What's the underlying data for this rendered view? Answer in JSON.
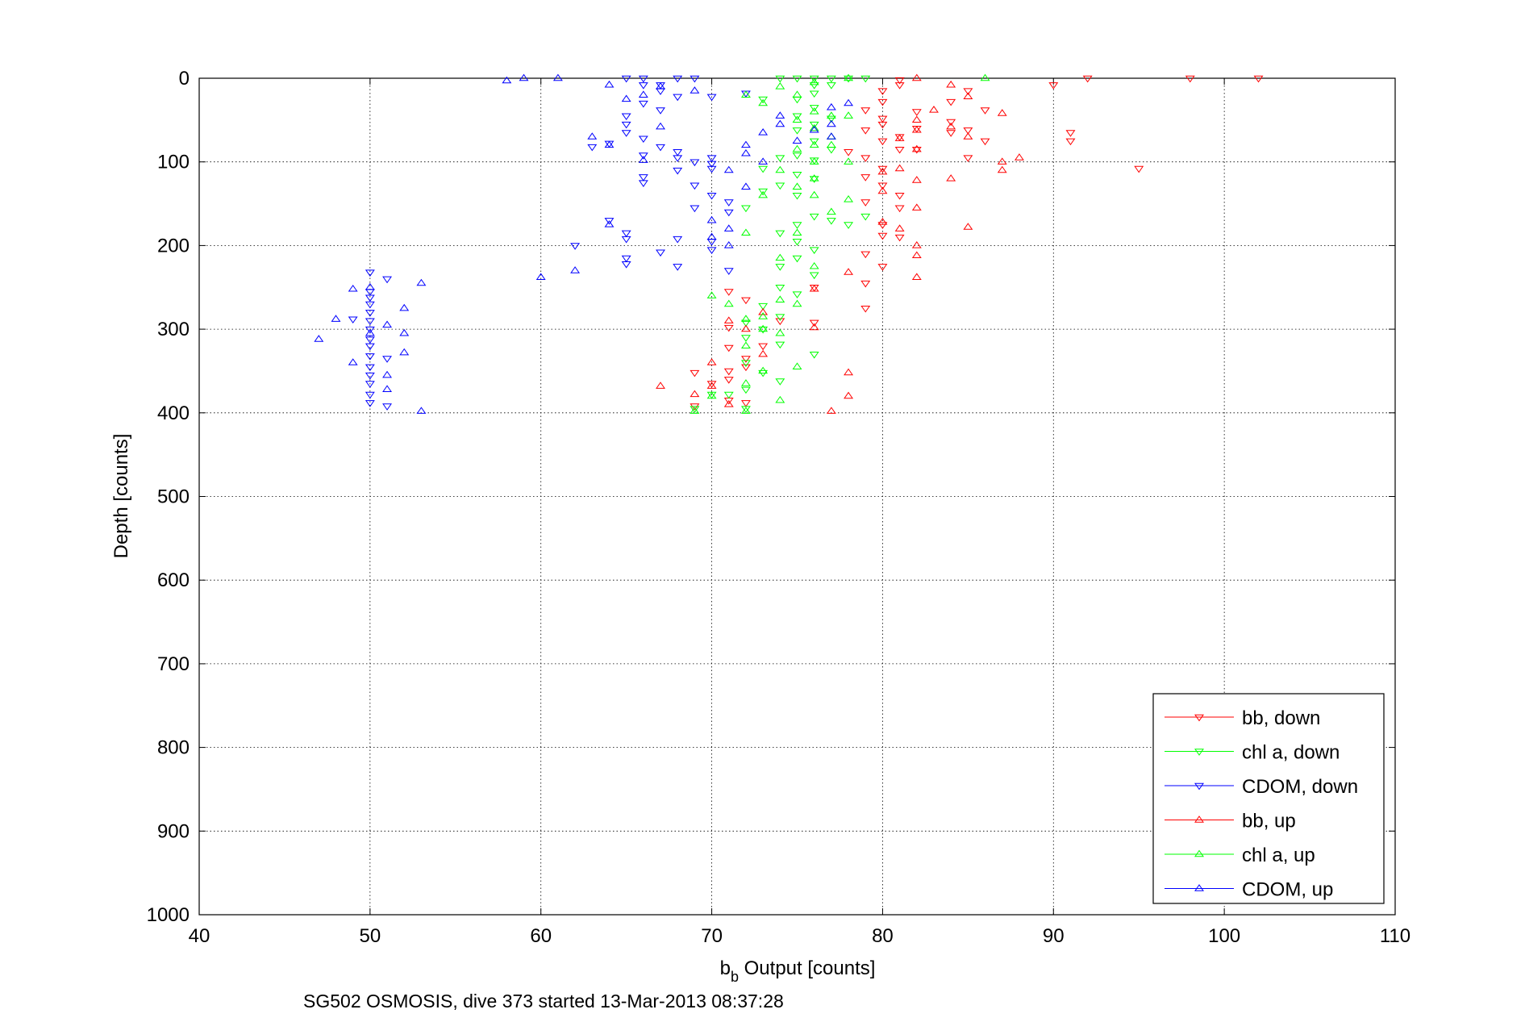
{
  "chart_data": {
    "type": "scatter",
    "title": "",
    "xlabel_main": "b",
    "xlabel_sub": "b",
    "xlabel_rest": " Output [counts]",
    "ylabel": "Depth [counts]",
    "caption": "SG502 OSMOSIS, dive 373 started 13-Mar-2013 08:37:28",
    "xlim": [
      40,
      110
    ],
    "ylim": [
      0,
      1000
    ],
    "y_reversed": true,
    "grid": true,
    "legend_position": "bottom-right",
    "x_ticks": [
      "40",
      "50",
      "60",
      "70",
      "80",
      "90",
      "100",
      "110"
    ],
    "y_ticks": [
      "0",
      "100",
      "200",
      "300",
      "400",
      "500",
      "600",
      "700",
      "800",
      "900",
      "1000"
    ],
    "series": [
      {
        "name": "bb, down",
        "color": "#ff0000",
        "marker": "triangle-down",
        "points": [
          [
            92,
            0
          ],
          [
            98,
            0
          ],
          [
            102,
            0
          ],
          [
            90,
            8
          ],
          [
            81,
            2
          ],
          [
            81,
            8
          ],
          [
            80,
            15
          ],
          [
            80,
            28
          ],
          [
            79,
            38
          ],
          [
            80,
            48
          ],
          [
            80,
            55
          ],
          [
            79,
            62
          ],
          [
            81,
            70
          ],
          [
            80,
            75
          ],
          [
            81,
            85
          ],
          [
            78,
            88
          ],
          [
            79,
            95
          ],
          [
            80,
            108
          ],
          [
            79,
            118
          ],
          [
            80,
            128
          ],
          [
            91,
            65
          ],
          [
            91,
            75
          ],
          [
            95,
            108
          ],
          [
            85,
            62
          ],
          [
            84,
            52
          ],
          [
            81,
            140
          ],
          [
            79,
            148
          ],
          [
            80,
            175
          ],
          [
            80,
            188
          ],
          [
            81,
            190
          ],
          [
            79,
            210
          ],
          [
            80,
            225
          ],
          [
            81,
            155
          ],
          [
            79,
            245
          ],
          [
            79,
            275
          ],
          [
            76,
            250
          ],
          [
            76,
            292
          ],
          [
            71,
            255
          ],
          [
            72,
            265
          ],
          [
            71,
            298
          ],
          [
            71,
            322
          ],
          [
            72,
            335
          ],
          [
            71,
            350
          ],
          [
            72,
            345
          ],
          [
            69,
            352
          ],
          [
            70,
            365
          ],
          [
            71,
            360
          ],
          [
            69,
            392
          ],
          [
            71,
            385
          ],
          [
            72,
            388
          ],
          [
            73,
            320
          ],
          [
            74,
            290
          ],
          [
            85,
            15
          ],
          [
            84,
            28
          ],
          [
            86,
            38
          ],
          [
            84,
            65
          ],
          [
            86,
            75
          ],
          [
            82,
            85
          ],
          [
            82,
            40
          ],
          [
            82,
            60
          ],
          [
            85,
            95
          ]
        ]
      },
      {
        "name": "chl a, down",
        "color": "#00ff00",
        "marker": "triangle-down",
        "points": [
          [
            74,
            0
          ],
          [
            75,
            0
          ],
          [
            76,
            0
          ],
          [
            77,
            0
          ],
          [
            78,
            0
          ],
          [
            79,
            0
          ],
          [
            76,
            8
          ],
          [
            77,
            8
          ],
          [
            76,
            18
          ],
          [
            75,
            25
          ],
          [
            73,
            25
          ],
          [
            76,
            35
          ],
          [
            75,
            45
          ],
          [
            77,
            48
          ],
          [
            76,
            55
          ],
          [
            75,
            62
          ],
          [
            76,
            75
          ],
          [
            77,
            85
          ],
          [
            75,
            92
          ],
          [
            74,
            95
          ],
          [
            76,
            98
          ],
          [
            73,
            108
          ],
          [
            75,
            115
          ],
          [
            76,
            120
          ],
          [
            74,
            128
          ],
          [
            73,
            135
          ],
          [
            75,
            140
          ],
          [
            72,
            155
          ],
          [
            76,
            165
          ],
          [
            75,
            175
          ],
          [
            77,
            170
          ],
          [
            74,
            185
          ],
          [
            75,
            195
          ],
          [
            76,
            205
          ],
          [
            75,
            215
          ],
          [
            74,
            225
          ],
          [
            76,
            235
          ],
          [
            74,
            250
          ],
          [
            75,
            258
          ],
          [
            73,
            272
          ],
          [
            74,
            285
          ],
          [
            72,
            292
          ],
          [
            73,
            300
          ],
          [
            72,
            310
          ],
          [
            74,
            318
          ],
          [
            76,
            330
          ],
          [
            72,
            340
          ],
          [
            73,
            352
          ],
          [
            74,
            362
          ],
          [
            72,
            372
          ],
          [
            71,
            378
          ],
          [
            70,
            378
          ],
          [
            69,
            395
          ],
          [
            72,
            395
          ],
          [
            78,
            175
          ],
          [
            79,
            165
          ]
        ]
      },
      {
        "name": "CDOM, down",
        "color": "#0000ff",
        "marker": "triangle-down",
        "points": [
          [
            65,
            0
          ],
          [
            66,
            0
          ],
          [
            68,
            0
          ],
          [
            69,
            0
          ],
          [
            66,
            8
          ],
          [
            67,
            8
          ],
          [
            67,
            15
          ],
          [
            68,
            22
          ],
          [
            66,
            30
          ],
          [
            67,
            38
          ],
          [
            70,
            22
          ],
          [
            72,
            18
          ],
          [
            65,
            55
          ],
          [
            65,
            65
          ],
          [
            66,
            72
          ],
          [
            64,
            78
          ],
          [
            67,
            82
          ],
          [
            68,
            88
          ],
          [
            68,
            95
          ],
          [
            70,
            95
          ],
          [
            70,
            102
          ],
          [
            70,
            108
          ],
          [
            68,
            110
          ],
          [
            66,
            118
          ],
          [
            66,
            125
          ],
          [
            69,
            128
          ],
          [
            70,
            140
          ],
          [
            71,
            148
          ],
          [
            69,
            155
          ],
          [
            71,
            160
          ],
          [
            64,
            170
          ],
          [
            65,
            185
          ],
          [
            65,
            192
          ],
          [
            68,
            192
          ],
          [
            70,
            195
          ],
          [
            70,
            205
          ],
          [
            67,
            208
          ],
          [
            62,
            200
          ],
          [
            65,
            215
          ],
          [
            65,
            222
          ],
          [
            68,
            225
          ],
          [
            71,
            230
          ],
          [
            50,
            232
          ],
          [
            50,
            255
          ],
          [
            50,
            262
          ],
          [
            50,
            270
          ],
          [
            50,
            280
          ],
          [
            50,
            290
          ],
          [
            50,
            300
          ],
          [
            50,
            312
          ],
          [
            50,
            320
          ],
          [
            50,
            332
          ],
          [
            50,
            345
          ],
          [
            50,
            355
          ],
          [
            50,
            365
          ],
          [
            50,
            378
          ],
          [
            50,
            388
          ],
          [
            51,
            240
          ],
          [
            51,
            335
          ],
          [
            51,
            392
          ],
          [
            49,
            288
          ],
          [
            66,
            92
          ],
          [
            69,
            100
          ],
          [
            65,
            45
          ],
          [
            63,
            82
          ]
        ]
      },
      {
        "name": "bb, up",
        "color": "#ff0000",
        "marker": "triangle-up",
        "points": [
          [
            82,
            0
          ],
          [
            84,
            8
          ],
          [
            85,
            22
          ],
          [
            83,
            38
          ],
          [
            82,
            50
          ],
          [
            82,
            62
          ],
          [
            81,
            72
          ],
          [
            82,
            85
          ],
          [
            84,
            58
          ],
          [
            85,
            70
          ],
          [
            87,
            42
          ],
          [
            88,
            95
          ],
          [
            87,
            100
          ],
          [
            87,
            110
          ],
          [
            80,
            112
          ],
          [
            82,
            122
          ],
          [
            80,
            135
          ],
          [
            82,
            155
          ],
          [
            81,
            180
          ],
          [
            82,
            200
          ],
          [
            82,
            212
          ],
          [
            82,
            238
          ],
          [
            80,
            172
          ],
          [
            78,
            232
          ],
          [
            76,
            252
          ],
          [
            78,
            352
          ],
          [
            78,
            380
          ],
          [
            76,
            298
          ],
          [
            73,
            330
          ],
          [
            72,
            300
          ],
          [
            73,
            280
          ],
          [
            71,
            290
          ],
          [
            70,
            340
          ],
          [
            70,
            368
          ],
          [
            67,
            368
          ],
          [
            69,
            378
          ],
          [
            71,
            390
          ],
          [
            77,
            398
          ],
          [
            81,
            108
          ],
          [
            84,
            120
          ],
          [
            85,
            178
          ]
        ]
      },
      {
        "name": "chl a, up",
        "color": "#00ff00",
        "marker": "triangle-up",
        "points": [
          [
            78,
            0
          ],
          [
            86,
            0
          ],
          [
            76,
            5
          ],
          [
            74,
            10
          ],
          [
            75,
            20
          ],
          [
            72,
            20
          ],
          [
            73,
            30
          ],
          [
            76,
            40
          ],
          [
            77,
            45
          ],
          [
            78,
            45
          ],
          [
            75,
            50
          ],
          [
            76,
            60
          ],
          [
            77,
            70
          ],
          [
            76,
            80
          ],
          [
            77,
            80
          ],
          [
            75,
            85
          ],
          [
            76,
            100
          ],
          [
            78,
            100
          ],
          [
            74,
            110
          ],
          [
            76,
            120
          ],
          [
            75,
            130
          ],
          [
            76,
            140
          ],
          [
            73,
            140
          ],
          [
            77,
            160
          ],
          [
            78,
            145
          ],
          [
            72,
            185
          ],
          [
            75,
            185
          ],
          [
            74,
            215
          ],
          [
            76,
            225
          ],
          [
            74,
            265
          ],
          [
            75,
            270
          ],
          [
            73,
            285
          ],
          [
            72,
            288
          ],
          [
            73,
            300
          ],
          [
            74,
            305
          ],
          [
            72,
            320
          ],
          [
            75,
            345
          ],
          [
            73,
            350
          ],
          [
            72,
            365
          ],
          [
            70,
            380
          ],
          [
            69,
            398
          ],
          [
            72,
            398
          ],
          [
            74,
            385
          ],
          [
            70,
            260
          ],
          [
            71,
            270
          ]
        ]
      },
      {
        "name": "CDOM, up",
        "color": "#0000ff",
        "marker": "triangle-up",
        "points": [
          [
            58,
            3
          ],
          [
            59,
            0
          ],
          [
            61,
            0
          ],
          [
            64,
            8
          ],
          [
            67,
            10
          ],
          [
            69,
            15
          ],
          [
            66,
            20
          ],
          [
            65,
            25
          ],
          [
            63,
            70
          ],
          [
            64,
            80
          ],
          [
            67,
            58
          ],
          [
            66,
            98
          ],
          [
            72,
            90
          ],
          [
            73,
            65
          ],
          [
            72,
            80
          ],
          [
            73,
            100
          ],
          [
            71,
            110
          ],
          [
            72,
            130
          ],
          [
            70,
            170
          ],
          [
            71,
            180
          ],
          [
            71,
            200
          ],
          [
            70,
            190
          ],
          [
            64,
            175
          ],
          [
            60,
            238
          ],
          [
            62,
            230
          ],
          [
            50,
            250
          ],
          [
            50,
            305
          ],
          [
            51,
            295
          ],
          [
            51,
            355
          ],
          [
            51,
            372
          ],
          [
            52,
            275
          ],
          [
            52,
            305
          ],
          [
            52,
            328
          ],
          [
            53,
            245
          ],
          [
            53,
            398
          ],
          [
            49,
            340
          ],
          [
            49,
            252
          ],
          [
            47,
            312
          ],
          [
            48,
            288
          ],
          [
            74,
            45
          ],
          [
            74,
            55
          ],
          [
            75,
            75
          ],
          [
            76,
            62
          ],
          [
            77,
            35
          ],
          [
            77,
            55
          ],
          [
            77,
            70
          ],
          [
            78,
            30
          ]
        ]
      }
    ]
  }
}
